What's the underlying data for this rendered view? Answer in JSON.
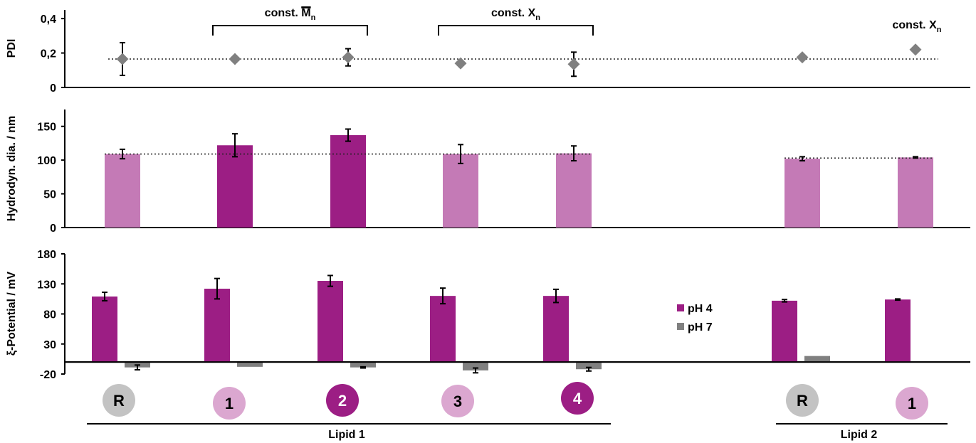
{
  "colors": {
    "dark": "#9c1e84",
    "light": "#c47ab6",
    "grey": "#808080",
    "diamond": "#808080",
    "circle_grey": "#c3c3c3",
    "circle_light": "#dba7d0",
    "circle_dark": "#9c1e84"
  },
  "chart_data": [
    {
      "type": "scatter",
      "ylabel": "PDI",
      "ylim": [
        0,
        0.45
      ],
      "yticks": [
        "0",
        "0,2",
        "0,4"
      ],
      "yticks_values": [
        0,
        0.2,
        0.4
      ],
      "reference_line": 0.165,
      "values": [
        0.165,
        0.165,
        0.175,
        0.14,
        0.135,
        0.175,
        0.22
      ],
      "errors": [
        0.095,
        0,
        0.05,
        0,
        0.07,
        0,
        0
      ],
      "annotations": [
        {
          "text": "const.",
          "symbol": "M",
          "sub": "n",
          "bracket": true,
          "from": 1,
          "to": 2
        },
        {
          "text": "const.",
          "symbol": "X",
          "sub": "n",
          "bracket": true,
          "from": 3,
          "to": 4
        },
        {
          "text": "const.",
          "symbol": "X",
          "sub": "n",
          "bracket": false,
          "at": 6
        }
      ]
    },
    {
      "type": "bar",
      "ylabel": "Hydrodyn. dia. / nm",
      "ylim": [
        0,
        175
      ],
      "yticks": [
        "0",
        "50",
        "100",
        "150"
      ],
      "yticks_values": [
        0,
        50,
        100,
        150
      ],
      "reference_lines": [
        {
          "value": 109,
          "from": 0,
          "to": 4
        },
        {
          "value": 103,
          "from": 5,
          "to": 6
        }
      ],
      "values": [
        109,
        122,
        137,
        109,
        110,
        102,
        104
      ],
      "errors": [
        7,
        17,
        9,
        14,
        11,
        3,
        1
      ],
      "bar_colors": [
        "light",
        "dark",
        "dark",
        "light",
        "light",
        "light",
        "light"
      ]
    },
    {
      "type": "bar",
      "ylabel": "ξ-Potential / mV",
      "ylim": [
        -20,
        180
      ],
      "yticks": [
        "-20",
        "30",
        "80",
        "130",
        "180"
      ],
      "yticks_values": [
        -20,
        30,
        80,
        130,
        180
      ],
      "series": [
        {
          "name": "pH 4",
          "color": "dark",
          "values": [
            109,
            122,
            135,
            110,
            110,
            102,
            104
          ],
          "errors": [
            7,
            17,
            9,
            13,
            11,
            2,
            1
          ]
        },
        {
          "name": "pH 7",
          "color": "grey",
          "values": [
            -9,
            -8,
            -9,
            -14,
            -12,
            10,
            0
          ],
          "errors": [
            4,
            0,
            1,
            4,
            3,
            0,
            0
          ]
        }
      ],
      "legend": "center-right"
    }
  ],
  "samples": [
    {
      "label": "R",
      "style": "circle_grey"
    },
    {
      "label": "1",
      "style": "circle_light"
    },
    {
      "label": "2",
      "style": "circle_dark"
    },
    {
      "label": "3",
      "style": "circle_light"
    },
    {
      "label": "4",
      "style": "circle_dark"
    },
    {
      "label": "R",
      "style": "circle_grey"
    },
    {
      "label": "1",
      "style": "circle_light"
    }
  ],
  "groups": [
    {
      "label": "Lipid 1",
      "from": 0,
      "to": 4
    },
    {
      "label": "Lipid 2",
      "from": 5,
      "to": 6
    }
  ]
}
